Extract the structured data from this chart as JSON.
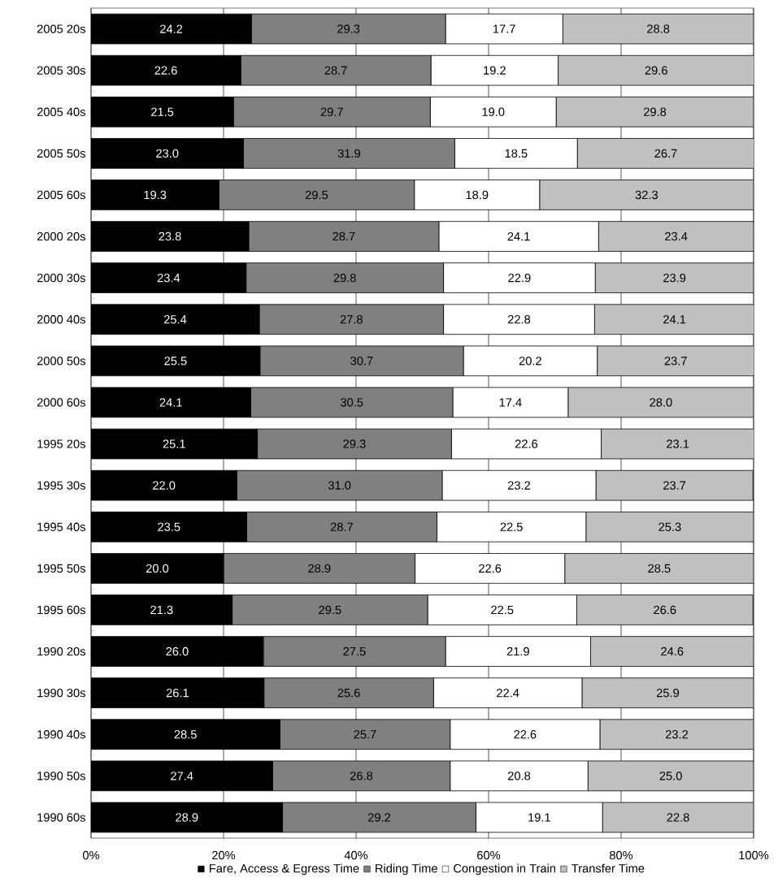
{
  "chart_data": {
    "type": "bar",
    "orientation": "horizontal",
    "stacked": true,
    "legend": "bottom",
    "grid": "x",
    "categories": [
      "2005 20s",
      "2005 30s",
      "2005 40s",
      "2005 50s",
      "2005 60s",
      "2000 20s",
      "2000 30s",
      "2000 40s",
      "2000 50s",
      "2000 60s",
      "1995 20s",
      "1995 30s",
      "1995 40s",
      "1995 50s",
      "1995 60s",
      "1990 20s",
      "1990 30s",
      "1990 40s",
      "1990 50s",
      "1990 60s"
    ],
    "series": [
      {
        "name": "Fare, Access & Egress Time",
        "color": "#000000",
        "values": [
          24.2,
          22.6,
          21.5,
          23.0,
          19.3,
          23.8,
          23.4,
          25.4,
          25.5,
          24.1,
          25.1,
          22.0,
          23.5,
          20.0,
          21.3,
          26.0,
          26.1,
          28.5,
          27.4,
          28.9
        ],
        "value_labels": [
          "24.2",
          "22.6",
          "21.5",
          "23.0",
          "19.3",
          "23.8",
          "23.4",
          "25.4",
          "25.5",
          "24.1",
          "25.1",
          "22.0",
          "23.5",
          "20.0",
          "21.3",
          "26.0",
          "26.1",
          "28.5",
          "27.4",
          "28.9"
        ]
      },
      {
        "name": "Riding Time",
        "color": "#808080",
        "values": [
          29.3,
          28.7,
          29.7,
          31.9,
          29.5,
          28.7,
          29.8,
          27.8,
          30.7,
          30.5,
          29.3,
          31.0,
          28.7,
          28.9,
          29.5,
          27.5,
          25.6,
          25.7,
          26.8,
          29.2
        ],
        "value_labels": [
          "29.3",
          "28.7",
          "29.7",
          "31.9",
          "29.5",
          "28.7",
          "29.8",
          "27.8",
          "30.7",
          "30.5",
          "29.3",
          "31.0",
          "28.7",
          "28.9",
          "29.5",
          "27.5",
          "25.6",
          "25.7",
          "26.8",
          "29.2"
        ]
      },
      {
        "name": "Congestion in Train",
        "color": "#ffffff",
        "values": [
          17.7,
          19.2,
          19.0,
          18.5,
          18.9,
          24.1,
          22.9,
          22.8,
          20.2,
          17.4,
          22.6,
          23.2,
          22.5,
          22.6,
          22.5,
          21.9,
          22.4,
          22.6,
          20.8,
          19.1
        ],
        "value_labels": [
          "17.7",
          "19.2",
          "19.0",
          "18.5",
          "18.9",
          "24.1",
          "22.9",
          "22.8",
          "20.2",
          "17.4",
          "22.6",
          "23.2",
          "22.5",
          "22.6",
          "22.5",
          "21.9",
          "22.4",
          "22.6",
          "20.8",
          "19.1"
        ]
      },
      {
        "name": "Transfer Time",
        "color": "#c0c0c0",
        "values": [
          28.8,
          29.6,
          29.8,
          26.7,
          32.3,
          23.4,
          23.9,
          24.1,
          23.7,
          28.0,
          23.1,
          23.7,
          25.3,
          28.5,
          26.6,
          24.6,
          25.9,
          23.2,
          25.0,
          22.8
        ],
        "value_labels": [
          "28.8",
          "29.6",
          "29.8",
          "26.7",
          "32.3",
          "23.4",
          "23.9",
          "24.1",
          "23.7",
          "28.0",
          "23.1",
          "23.7",
          "25.3",
          "28.5",
          "26.6",
          "24.6",
          "25.9",
          "23.2",
          "25.0",
          "22.8"
        ]
      }
    ],
    "xlim": [
      0,
      100
    ],
    "xticks": [
      {
        "value": 0,
        "label": "0%"
      },
      {
        "value": 20,
        "label": "20%"
      },
      {
        "value": 40,
        "label": "40%"
      },
      {
        "value": 60,
        "label": "60%"
      },
      {
        "value": 80,
        "label": "80%"
      },
      {
        "value": 100,
        "label": "100%"
      }
    ]
  }
}
